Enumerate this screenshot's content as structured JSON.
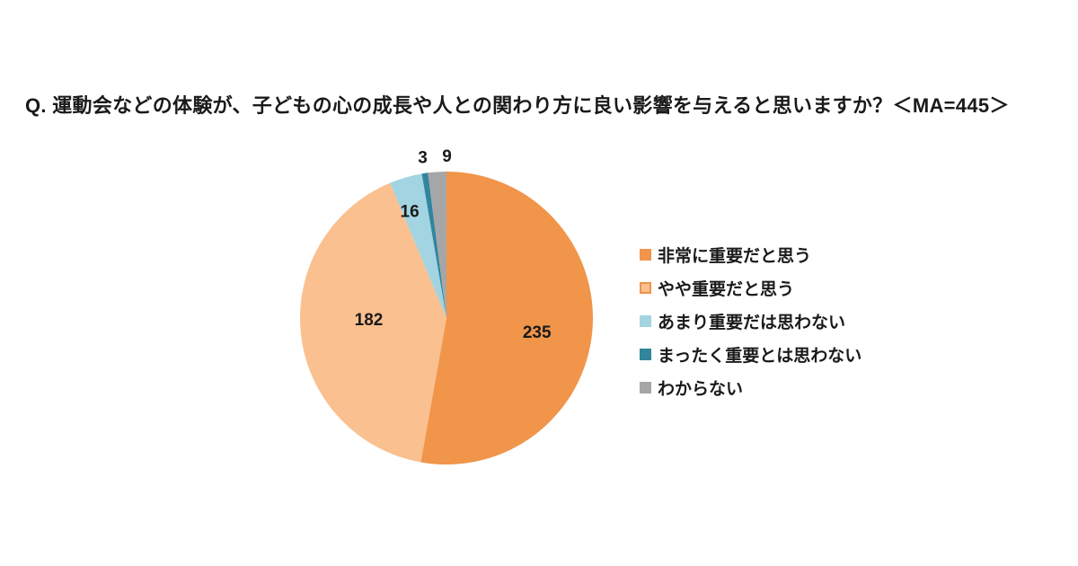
{
  "title": "Q. 運動会などの体験が、子どもの心の成長や人との関わり方に良い影響を与えると思いますか？＜MA=445＞",
  "chart_data": {
    "type": "pie",
    "title": "運動会などの体験が、子どもの心の成長や人との関わり方に良い影響を与えると思いますか",
    "sample_note": "MA=445",
    "total": 445,
    "categories": [
      "非常に重要だと思う",
      "やや重要だと思う",
      "あまり重要だは思わない",
      "まったく重要とは思わない",
      "わからない"
    ],
    "values": [
      235,
      182,
      16,
      3,
      9
    ],
    "colors": [
      "#F0954A",
      "#FAC08F",
      "#A2D4E2",
      "#31859C",
      "#A6A6A6"
    ],
    "swatch_borders": [
      "",
      "#F0954A",
      "",
      "",
      ""
    ],
    "label_color": "#1a1a1a",
    "start_angle_deg": 0,
    "direction": "clockwise",
    "legend_position": "right",
    "data_labels": "values"
  }
}
